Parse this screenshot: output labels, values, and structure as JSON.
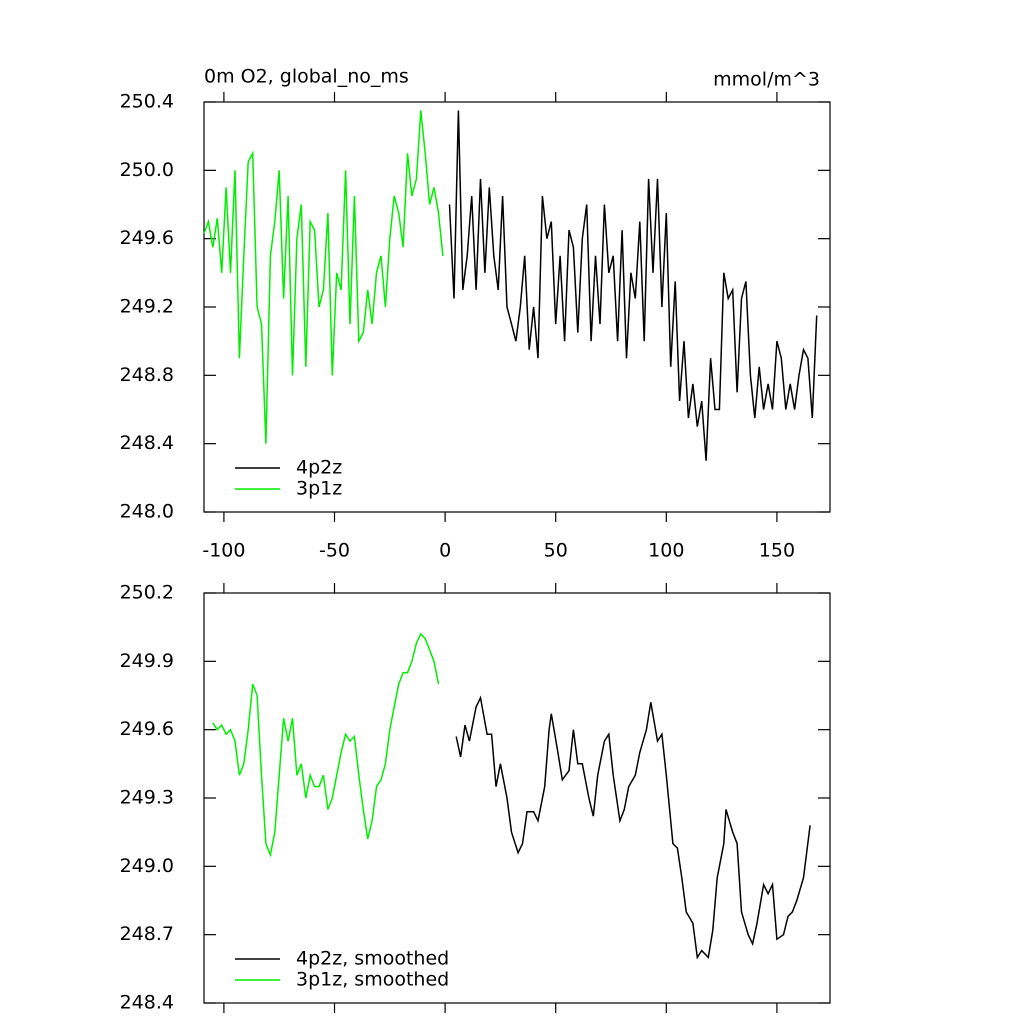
{
  "chart_data": [
    {
      "type": "line",
      "title": "0m O2, global_no_ms",
      "units": "mmol/m^3",
      "xlim": [
        -109,
        174
      ],
      "xticks": [
        -100,
        -50,
        0,
        50,
        100,
        150
      ],
      "ylim": [
        248.0,
        250.4
      ],
      "yticks": [
        {
          "value": 248.0,
          "label": "248.0"
        },
        248.4,
        248.8,
        249.2,
        249.6,
        {
          "value": 250.0,
          "label": "250.0"
        },
        250.4
      ],
      "legend": "lower left",
      "series": [
        {
          "name": "4p2z",
          "color": "#000000",
          "x": [
            2,
            4,
            6,
            8,
            10,
            12,
            14,
            16,
            18,
            20,
            22,
            24,
            26,
            28,
            30,
            32,
            34,
            36,
            38,
            40,
            42,
            44,
            46,
            48,
            50,
            52,
            54,
            56,
            58,
            60,
            62,
            64,
            66,
            68,
            70,
            72,
            74,
            76,
            78,
            80,
            82,
            84,
            86,
            88,
            90,
            92,
            94,
            96,
            98,
            100,
            102,
            104,
            106,
            108,
            110,
            112,
            114,
            116,
            118,
            120,
            122,
            124,
            126,
            128,
            130,
            132,
            134,
            136,
            138,
            140,
            142,
            144,
            146,
            148,
            150,
            152,
            154,
            156,
            158,
            160,
            162,
            164,
            166,
            168
          ],
          "values": [
            249.8,
            249.25,
            250.35,
            249.3,
            249.5,
            249.85,
            249.3,
            249.95,
            249.4,
            249.9,
            249.5,
            249.3,
            249.85,
            249.2,
            249.1,
            249.0,
            249.2,
            249.5,
            248.95,
            249.2,
            248.9,
            249.85,
            249.6,
            249.7,
            249.1,
            249.5,
            249.0,
            249.65,
            249.55,
            249.05,
            249.6,
            249.8,
            249.0,
            249.5,
            249.1,
            249.8,
            249.4,
            249.5,
            249.0,
            249.65,
            248.9,
            249.4,
            249.25,
            249.7,
            249.0,
            249.95,
            249.4,
            249.95,
            249.2,
            249.75,
            248.85,
            249.35,
            248.65,
            249.0,
            248.55,
            248.75,
            248.5,
            248.65,
            248.3,
            248.9,
            248.6,
            248.6,
            249.4,
            249.25,
            249.3,
            248.7,
            249.25,
            249.35,
            248.8,
            248.55,
            248.85,
            248.6,
            248.75,
            248.6,
            249.0,
            248.9,
            248.6,
            248.75,
            248.6,
            248.8,
            248.95,
            248.9,
            248.55,
            249.15
          ]
        },
        {
          "name": "3p1z",
          "color": "#00ee00",
          "x": [
            -109,
            -107,
            -105,
            -103,
            -101,
            -99,
            -97,
            -95,
            -93,
            -91,
            -89,
            -87,
            -85,
            -83,
            -81,
            -79,
            -77,
            -75,
            -73,
            -71,
            -69,
            -67,
            -65,
            -63,
            -61,
            -59,
            -57,
            -55,
            -53,
            -51,
            -49,
            -47,
            -45,
            -43,
            -41,
            -39,
            -37,
            -35,
            -33,
            -31,
            -29,
            -27,
            -25,
            -23,
            -21,
            -19,
            -17,
            -15,
            -13,
            -11,
            -9,
            -7,
            -5,
            -3,
            -1
          ],
          "values": [
            249.63,
            249.7,
            249.55,
            249.72,
            249.4,
            249.9,
            249.4,
            250.0,
            248.9,
            249.5,
            250.05,
            250.1,
            249.2,
            249.1,
            248.4,
            249.5,
            249.7,
            250.0,
            249.25,
            249.85,
            248.8,
            249.6,
            249.8,
            248.85,
            249.7,
            249.65,
            249.2,
            249.3,
            249.75,
            248.8,
            249.4,
            249.3,
            250.0,
            249.1,
            249.85,
            249.0,
            249.05,
            249.3,
            249.1,
            249.4,
            249.5,
            249.2,
            249.6,
            249.85,
            249.75,
            249.55,
            250.1,
            249.85,
            249.95,
            250.35,
            250.1,
            249.8,
            249.9,
            249.75,
            249.5
          ]
        }
      ]
    },
    {
      "type": "line",
      "xlim": [
        -109,
        174
      ],
      "xticks": [
        -100,
        -50,
        0,
        50,
        100,
        150
      ],
      "ylim": [
        248.4,
        250.2
      ],
      "yticks": [
        248.4,
        248.7,
        {
          "value": 249.0,
          "label": "249.0"
        },
        249.3,
        249.6,
        249.9,
        250.2
      ],
      "legend": "lower left",
      "series": [
        {
          "name": "4p2z, smoothed",
          "color": "#000000",
          "x": [
            5,
            7,
            9,
            11,
            14,
            16,
            19,
            21,
            23,
            25,
            28,
            30,
            33,
            35,
            37,
            40,
            42,
            45,
            47,
            48,
            51,
            53,
            56,
            58,
            60,
            62,
            65,
            67,
            69,
            72,
            74,
            76,
            79,
            81,
            83,
            86,
            88,
            91,
            93,
            96,
            98,
            100,
            103,
            105,
            107,
            109,
            112,
            114,
            116,
            119,
            121,
            123,
            126,
            127,
            130,
            132,
            134,
            137,
            139,
            141,
            144,
            146,
            148,
            150,
            153,
            155,
            157,
            159,
            162,
            165
          ],
          "values": [
            249.57,
            249.48,
            249.62,
            249.55,
            249.7,
            249.74,
            249.58,
            249.58,
            249.35,
            249.45,
            249.3,
            249.15,
            249.06,
            249.1,
            249.24,
            249.24,
            249.2,
            249.35,
            249.6,
            249.67,
            249.5,
            249.38,
            249.42,
            249.6,
            249.45,
            249.45,
            249.3,
            249.22,
            249.4,
            249.55,
            249.58,
            249.4,
            249.2,
            249.25,
            249.35,
            249.4,
            249.5,
            249.6,
            249.72,
            249.55,
            249.58,
            249.4,
            249.1,
            249.08,
            248.95,
            248.8,
            248.75,
            248.6,
            248.63,
            248.6,
            248.72,
            248.95,
            249.1,
            249.25,
            249.15,
            249.1,
            248.8,
            248.7,
            248.66,
            248.75,
            248.92,
            248.88,
            248.92,
            248.68,
            248.7,
            248.78,
            248.8,
            248.85,
            248.95,
            249.18
          ]
        },
        {
          "name": "3p1z, smoothed",
          "color": "#00ee00",
          "x": [
            -105,
            -103,
            -101,
            -99,
            -97,
            -95,
            -93,
            -91,
            -89,
            -87,
            -85,
            -83,
            -81,
            -79,
            -77,
            -75,
            -73,
            -71,
            -69,
            -67,
            -65,
            -63,
            -61,
            -59,
            -57,
            -55,
            -53,
            -51,
            -49,
            -47,
            -45,
            -43,
            -41,
            -39,
            -37,
            -35,
            -33,
            -31,
            -29,
            -27,
            -25,
            -23,
            -21,
            -19,
            -17,
            -15,
            -13,
            -11,
            -9,
            -7,
            -5,
            -3
          ],
          "values": [
            249.63,
            249.6,
            249.62,
            249.58,
            249.6,
            249.55,
            249.4,
            249.45,
            249.6,
            249.8,
            249.75,
            249.4,
            249.1,
            249.05,
            249.15,
            249.4,
            249.65,
            249.55,
            249.65,
            249.4,
            249.45,
            249.3,
            249.4,
            249.35,
            249.35,
            249.4,
            249.25,
            249.3,
            249.4,
            249.5,
            249.58,
            249.55,
            249.57,
            249.4,
            249.25,
            249.12,
            249.2,
            249.35,
            249.38,
            249.45,
            249.6,
            249.7,
            249.8,
            249.85,
            249.85,
            249.9,
            249.98,
            250.02,
            250.0,
            249.95,
            249.9,
            249.8
          ]
        }
      ]
    }
  ]
}
